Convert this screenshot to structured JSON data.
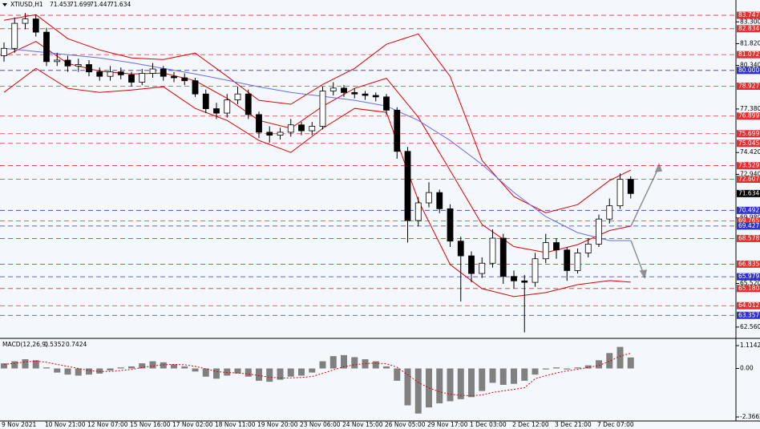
{
  "chart_data": [
    {
      "type": "candlestick",
      "symbol": "XTIUSD,H1",
      "ohlc": [
        71.453,
        71.699,
        71.447,
        71.634
      ],
      "categories": [
        "9 Nov 2021",
        null,
        null,
        null,
        "10 Nov 21:00",
        null,
        null,
        null,
        "12 Nov 07:00",
        null,
        null,
        null,
        "15 Nov 16:00",
        null,
        null,
        null,
        "17 Nov 02:00",
        null,
        null,
        null,
        "18 Nov 11:00",
        null,
        null,
        null,
        "19 Nov 20:00",
        null,
        null,
        null,
        "23 Nov 06:00",
        null,
        null,
        null,
        "24 Nov 15:00",
        null,
        null,
        null,
        "26 Nov 05:00",
        null,
        null,
        null,
        "29 Nov 17:00",
        null,
        null,
        null,
        "1 Dec 03:00",
        null,
        null,
        null,
        "2 Dec 12:00",
        null,
        null,
        null,
        "3 Dec 21:00",
        null,
        null,
        null,
        "7 Dec 07:00",
        null,
        null,
        null
      ],
      "open": [
        81.0,
        81.5,
        83.2,
        83.5,
        82.6,
        80.6,
        80.7,
        80.3,
        80.4,
        79.9,
        79.6,
        79.9,
        79.7,
        79.2,
        79.8,
        80.1,
        79.6,
        79.5,
        79.3,
        78.4,
        77.4,
        77.1,
        78.0,
        78.4,
        77.0,
        75.8,
        75.6,
        75.8,
        76.3,
        75.9,
        76.2,
        78.6,
        78.8,
        78.5,
        78.4,
        78.3,
        78.2,
        77.3,
        74.5,
        69.8,
        71.0,
        71.7,
        70.6,
        68.4,
        67.4,
        66.2,
        66.9,
        68.6,
        66.0,
        65.7,
        65.6,
        67.2,
        68.3,
        67.8,
        66.4,
        67.6,
        68.2,
        69.9,
        70.8,
        72.6
      ],
      "high": [
        81.9,
        83.6,
        83.9,
        83.8,
        82.9,
        81.2,
        81.0,
        80.8,
        80.7,
        80.2,
        80.3,
        80.2,
        79.9,
        80.1,
        80.5,
        80.3,
        79.9,
        79.8,
        79.5,
        78.7,
        77.8,
        78.4,
        78.9,
        78.7,
        77.2,
        76.2,
        76.1,
        76.7,
        76.5,
        76.5,
        78.9,
        79.2,
        79.0,
        78.8,
        78.6,
        78.5,
        78.4,
        77.5,
        74.8,
        71.4,
        72.4,
        71.9,
        70.9,
        68.7,
        67.7,
        67.3,
        69.2,
        68.9,
        66.4,
        66.1,
        67.6,
        68.9,
        68.6,
        68.0,
        67.9,
        68.6,
        70.2,
        71.3,
        73.0,
        72.8
      ],
      "low": [
        80.6,
        81.2,
        82.8,
        82.3,
        80.3,
        80.3,
        79.9,
        79.9,
        79.6,
        79.3,
        79.3,
        79.4,
        78.9,
        79.0,
        79.5,
        79.3,
        79.2,
        79.0,
        78.2,
        77.1,
        76.7,
        76.8,
        77.7,
        76.7,
        75.4,
        75.1,
        75.3,
        75.5,
        75.6,
        75.6,
        76.0,
        78.3,
        78.2,
        78.1,
        78.0,
        77.9,
        77.0,
        74.0,
        68.3,
        69.4,
        70.7,
        70.3,
        68.0,
        64.3,
        65.6,
        65.9,
        66.6,
        65.5,
        65.2,
        62.2,
        65.3,
        66.9,
        67.2,
        65.7,
        66.2,
        67.3,
        68.0,
        69.6,
        70.6,
        71.3
      ],
      "close": [
        81.5,
        83.2,
        83.5,
        82.6,
        80.6,
        80.7,
        80.3,
        80.4,
        79.9,
        79.6,
        79.9,
        79.7,
        79.2,
        79.8,
        80.1,
        79.6,
        79.5,
        79.3,
        78.4,
        77.4,
        77.1,
        78.0,
        78.4,
        77.0,
        75.8,
        75.6,
        75.8,
        76.3,
        75.9,
        76.2,
        78.6,
        78.8,
        78.5,
        78.4,
        78.3,
        78.2,
        77.3,
        74.5,
        69.8,
        71.0,
        71.7,
        70.6,
        68.4,
        67.4,
        66.2,
        66.9,
        68.6,
        66.0,
        65.7,
        65.6,
        67.2,
        68.3,
        67.8,
        66.4,
        67.6,
        68.2,
        69.9,
        70.8,
        72.6,
        71.634
      ],
      "overlay_x": [
        0,
        3,
        6,
        9,
        12,
        15,
        18,
        21,
        24,
        27,
        30,
        33,
        36,
        39,
        42,
        45,
        48,
        51,
        54,
        57,
        59
      ],
      "overlays": [
        {
          "color": "#e00000",
          "values": [
            83.41,
            83.79,
            82.16,
            81.39,
            80.85,
            80.74,
            81.18,
            79.6,
            77.97,
            77.7,
            79.05,
            80.14,
            81.78,
            82.48,
            79.6,
            73.88,
            71.43,
            70.33,
            70.88,
            72.52,
            73.23
          ]
        },
        {
          "color": "#e00000",
          "values": [
            80.96,
            81.97,
            80.47,
            79.95,
            79.76,
            79.82,
            79.3,
            78.1,
            76.6,
            76.07,
            77.56,
            78.78,
            79.47,
            76.82,
            73.2,
            69.53,
            68.03,
            67.62,
            68.16,
            69.12,
            69.42
          ]
        },
        {
          "color": "#e00000",
          "values": [
            78.51,
            80.14,
            78.78,
            78.51,
            78.67,
            78.89,
            77.42,
            76.6,
            75.24,
            74.43,
            76.06,
            77.42,
            77.15,
            71.16,
            66.81,
            65.17,
            64.63,
            64.9,
            65.44,
            65.72,
            65.61
          ]
        },
        {
          "color": "#6a6af0",
          "values": [
            81.5,
            81.29,
            81.07,
            80.85,
            80.52,
            80.14,
            79.76,
            79.33,
            78.89,
            78.51,
            78.24,
            77.97,
            77.58,
            76.6,
            75.24,
            73.61,
            71.71,
            70.07,
            68.98,
            68.44,
            68.44
          ]
        }
      ],
      "levels": [
        {
          "value": 83.747,
          "color": "#e03030"
        },
        {
          "value": 82.834,
          "color": "#e03030"
        },
        {
          "value": 81.072,
          "color": "#e03030"
        },
        {
          "value": 80,
          "label": "80.000",
          "color": "#3030d0"
        },
        {
          "value": 78.927,
          "color": "#e03030"
        },
        {
          "value": 76.899,
          "color": "#e03030"
        },
        {
          "value": 75.699,
          "color": "#e03030"
        },
        {
          "value": 75.045,
          "color": "#e03030"
        },
        {
          "value": 73.529,
          "color": "#e03030"
        },
        {
          "value": 72.607,
          "color": "#e03030"
        },
        {
          "value": 70.492,
          "color": "#3030d0"
        },
        {
          "value": 69.765,
          "color": "#e03030"
        },
        {
          "value": 69.427,
          "color": "#3030d0"
        },
        {
          "value": 68.578,
          "color": "#e03030"
        },
        {
          "value": 66.835,
          "color": "#e03030"
        },
        {
          "value": 65.979,
          "color": "#3030d0"
        },
        {
          "value": 65.18,
          "label": "65.180",
          "color": "#e03030"
        },
        {
          "value": 64.012,
          "color": "#e03030"
        },
        {
          "value": 63.357,
          "color": "#3030d0"
        }
      ],
      "ylim": [
        61.9,
        84.35
      ],
      "yticks": [
        {
          "value": 83.3,
          "label": "83.300"
        },
        {
          "value": 81.82,
          "label": "81.820"
        },
        {
          "value": 80.34,
          "label": "80.340"
        },
        {
          "value": 77.38,
          "label": "77.380"
        },
        {
          "value": 74.42,
          "label": "74.420"
        },
        {
          "value": 72.94,
          "label": "72.940"
        },
        {
          "value": 69.98,
          "label": "69.980"
        },
        {
          "value": 65.52,
          "label": "65.520"
        },
        {
          "value": 62.56,
          "label": "62.560"
        }
      ]
    },
    {
      "type": "macd",
      "title": "MACD(12,26,9)",
      "values": [
        0.25,
        0.35,
        0.45,
        0.4,
        0.05,
        -0.2,
        -0.3,
        -0.35,
        -0.3,
        -0.25,
        -0.1,
        0.05,
        0.1,
        0.25,
        0.35,
        0.3,
        0.2,
        0.1,
        -0.15,
        -0.4,
        -0.5,
        -0.35,
        -0.25,
        -0.4,
        -0.6,
        -0.65,
        -0.55,
        -0.4,
        -0.35,
        -0.2,
        0.35,
        0.6,
        0.65,
        0.55,
        0.45,
        0.35,
        0.1,
        -0.6,
        -1.8,
        -2.2,
        -1.9,
        -1.7,
        -1.6,
        -1.5,
        -1.4,
        -1.1,
        -0.7,
        -0.8,
        -0.75,
        -0.6,
        -0.3,
        -0.05,
        0.05,
        -0.05,
        0.05,
        0.15,
        0.4,
        0.75,
        1.05,
        0.5352
      ],
      "signal": [
        0.2,
        0.25,
        0.32,
        0.36,
        0.3,
        0.2,
        0.1,
        0.0,
        -0.1,
        -0.15,
        -0.15,
        -0.1,
        -0.05,
        0.05,
        0.12,
        0.18,
        0.2,
        0.18,
        0.1,
        -0.02,
        -0.15,
        -0.2,
        -0.22,
        -0.27,
        -0.35,
        -0.42,
        -0.47,
        -0.46,
        -0.44,
        -0.39,
        -0.24,
        -0.07,
        0.08,
        0.18,
        0.24,
        0.26,
        0.23,
        0.06,
        -0.31,
        -0.68,
        -0.95,
        -1.14,
        -1.26,
        -1.31,
        -1.33,
        -1.29,
        -1.17,
        -1.09,
        -1.02,
        -0.94,
        -0.5,
        -0.35,
        -0.22,
        -0.12,
        -0.04,
        0.05,
        0.15,
        0.35,
        0.6,
        0.7424
      ],
      "color": "#808080",
      "signal_color": "#e00000",
      "ylim": [
        -2.3662,
        1.1142
      ],
      "yticks": [
        1.1142,
        {
          "value": 0,
          "label": "0.00"
        },
        -2.3662
      ]
    }
  ]
}
